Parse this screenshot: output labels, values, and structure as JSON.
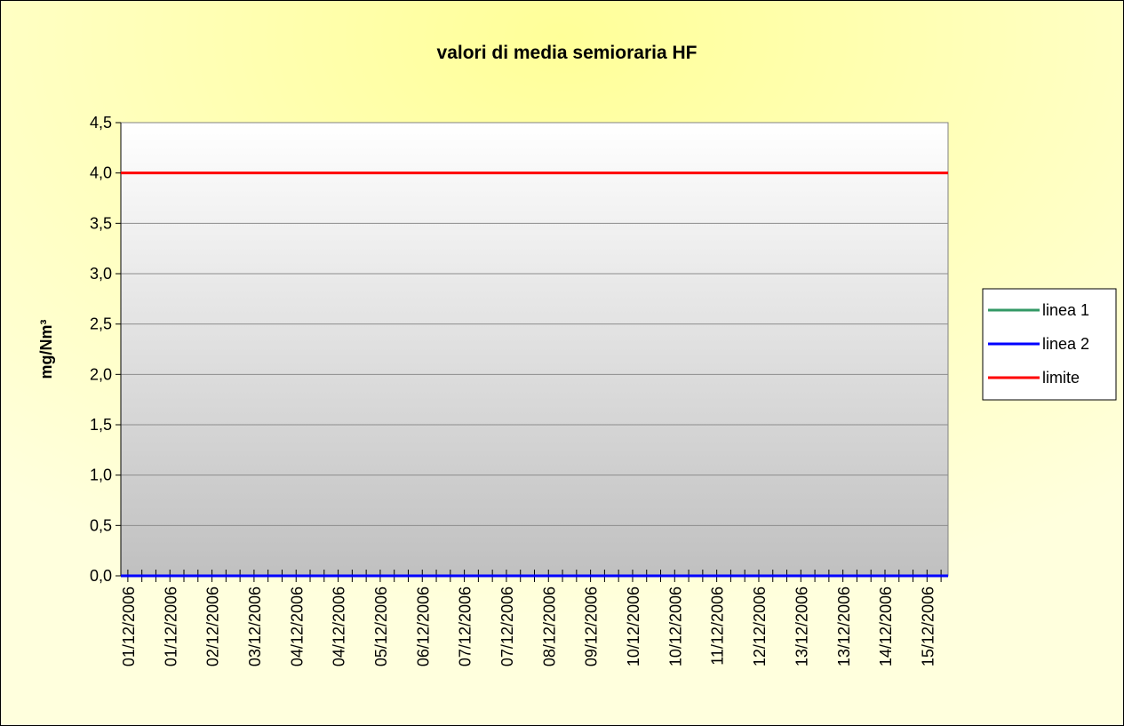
{
  "chart_data": {
    "type": "line",
    "title": "valori di media semioraria HF",
    "ylabel": "mg/Nm³",
    "categories": [
      "01/12/2006",
      null,
      null,
      "01/12/2006",
      null,
      null,
      "02/12/2006",
      null,
      null,
      "03/12/2006",
      null,
      null,
      "04/12/2006",
      null,
      null,
      "04/12/2006",
      null,
      null,
      "05/12/2006",
      null,
      null,
      "06/12/2006",
      null,
      null,
      "07/12/2006",
      null,
      null,
      "07/12/2006",
      null,
      null,
      "08/12/2006",
      null,
      null,
      "09/12/2006",
      null,
      null,
      "10/12/2006",
      null,
      null,
      "10/12/2006",
      null,
      null,
      "11/12/2006",
      null,
      null,
      "12/12/2006",
      null,
      null,
      "13/12/2006",
      null,
      null,
      "13/12/2006",
      null,
      null,
      "14/12/2006",
      null,
      null,
      "15/12/2006",
      null,
      null
    ],
    "series": [
      {
        "name": "linea 1",
        "color": "#339966",
        "values": [
          0,
          0,
          0,
          0,
          0,
          0,
          0,
          0,
          0,
          0,
          0,
          0,
          0,
          0,
          0,
          0,
          0,
          0,
          0,
          0,
          0,
          0,
          0,
          0,
          0,
          0,
          0,
          0,
          0,
          0,
          0,
          0,
          0,
          0,
          0,
          0,
          0,
          0,
          0,
          0,
          0,
          0,
          0,
          0,
          0,
          0,
          0,
          0,
          0,
          0,
          0,
          0,
          0,
          0,
          0,
          0,
          0,
          0,
          0,
          0
        ]
      },
      {
        "name": "linea 2",
        "color": "#0000ff",
        "values": [
          0,
          0,
          0,
          0,
          0,
          0,
          0,
          0,
          0,
          0,
          0,
          0,
          0,
          0,
          0,
          0,
          0,
          0,
          0,
          0,
          0,
          0,
          0,
          0,
          0,
          0,
          0,
          0,
          0,
          0,
          0,
          0,
          0,
          0,
          0,
          0,
          0,
          0,
          0,
          0,
          0,
          0,
          0,
          0,
          0,
          0,
          0,
          0,
          0,
          0,
          0,
          0,
          0,
          0,
          0,
          0,
          0,
          0,
          0,
          0
        ]
      },
      {
        "name": "limite",
        "color": "#ff0000",
        "values": [
          4,
          4,
          4,
          4,
          4,
          4,
          4,
          4,
          4,
          4,
          4,
          4,
          4,
          4,
          4,
          4,
          4,
          4,
          4,
          4,
          4,
          4,
          4,
          4,
          4,
          4,
          4,
          4,
          4,
          4,
          4,
          4,
          4,
          4,
          4,
          4,
          4,
          4,
          4,
          4,
          4,
          4,
          4,
          4,
          4,
          4,
          4,
          4,
          4,
          4,
          4,
          4,
          4,
          4,
          4,
          4,
          4,
          4,
          4,
          4
        ]
      }
    ],
    "ylim": [
      0,
      4.5
    ],
    "yticks": [
      {
        "value": 0,
        "label": "0,0"
      },
      {
        "value": 0.5,
        "label": "0,5"
      },
      {
        "value": 1,
        "label": "1,0"
      },
      {
        "value": 1.5,
        "label": "1,5"
      },
      {
        "value": 2,
        "label": "2,0"
      },
      {
        "value": 2.5,
        "label": "2,5"
      },
      {
        "value": 3,
        "label": "3,0"
      },
      {
        "value": 3.5,
        "label": "3,5"
      },
      {
        "value": 4,
        "label": "4,0"
      },
      {
        "value": 4.5,
        "label": "4,5"
      }
    ],
    "grid": true,
    "legend": "right"
  }
}
